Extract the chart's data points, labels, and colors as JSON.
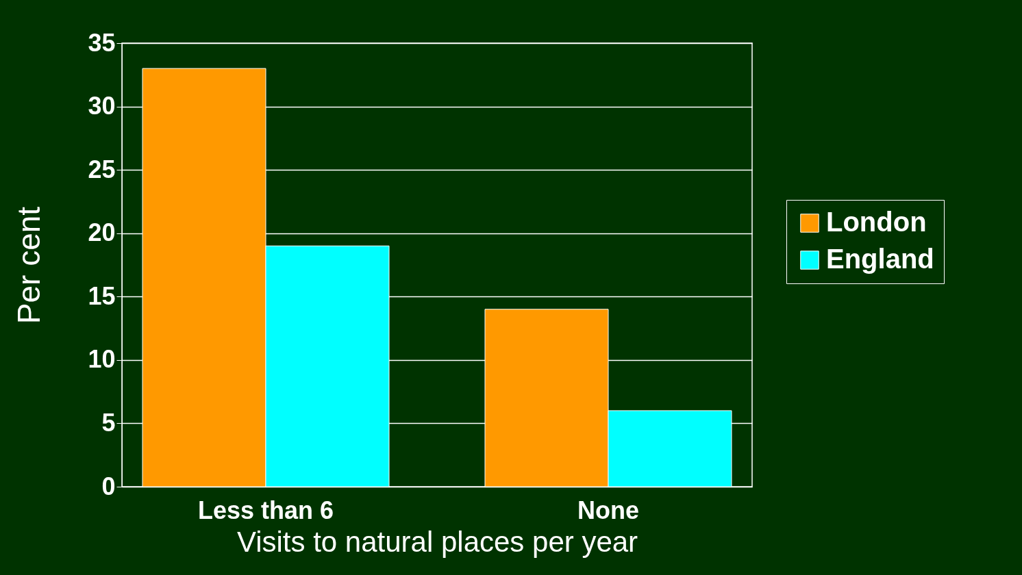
{
  "chart_data": {
    "type": "bar",
    "xlabel": "Visits to natural places per year",
    "ylabel": "Per cent",
    "categories": [
      "Less than 6",
      "None"
    ],
    "series": [
      {
        "name": "London",
        "color": "#ff9900",
        "values": [
          33,
          14
        ]
      },
      {
        "name": "England",
        "color": "#00ffff",
        "values": [
          19,
          6
        ]
      }
    ],
    "ylim": [
      0,
      35
    ],
    "yticks": [
      0,
      5,
      10,
      15,
      20,
      25,
      30,
      35
    ],
    "grid": "y",
    "legend": "right"
  }
}
